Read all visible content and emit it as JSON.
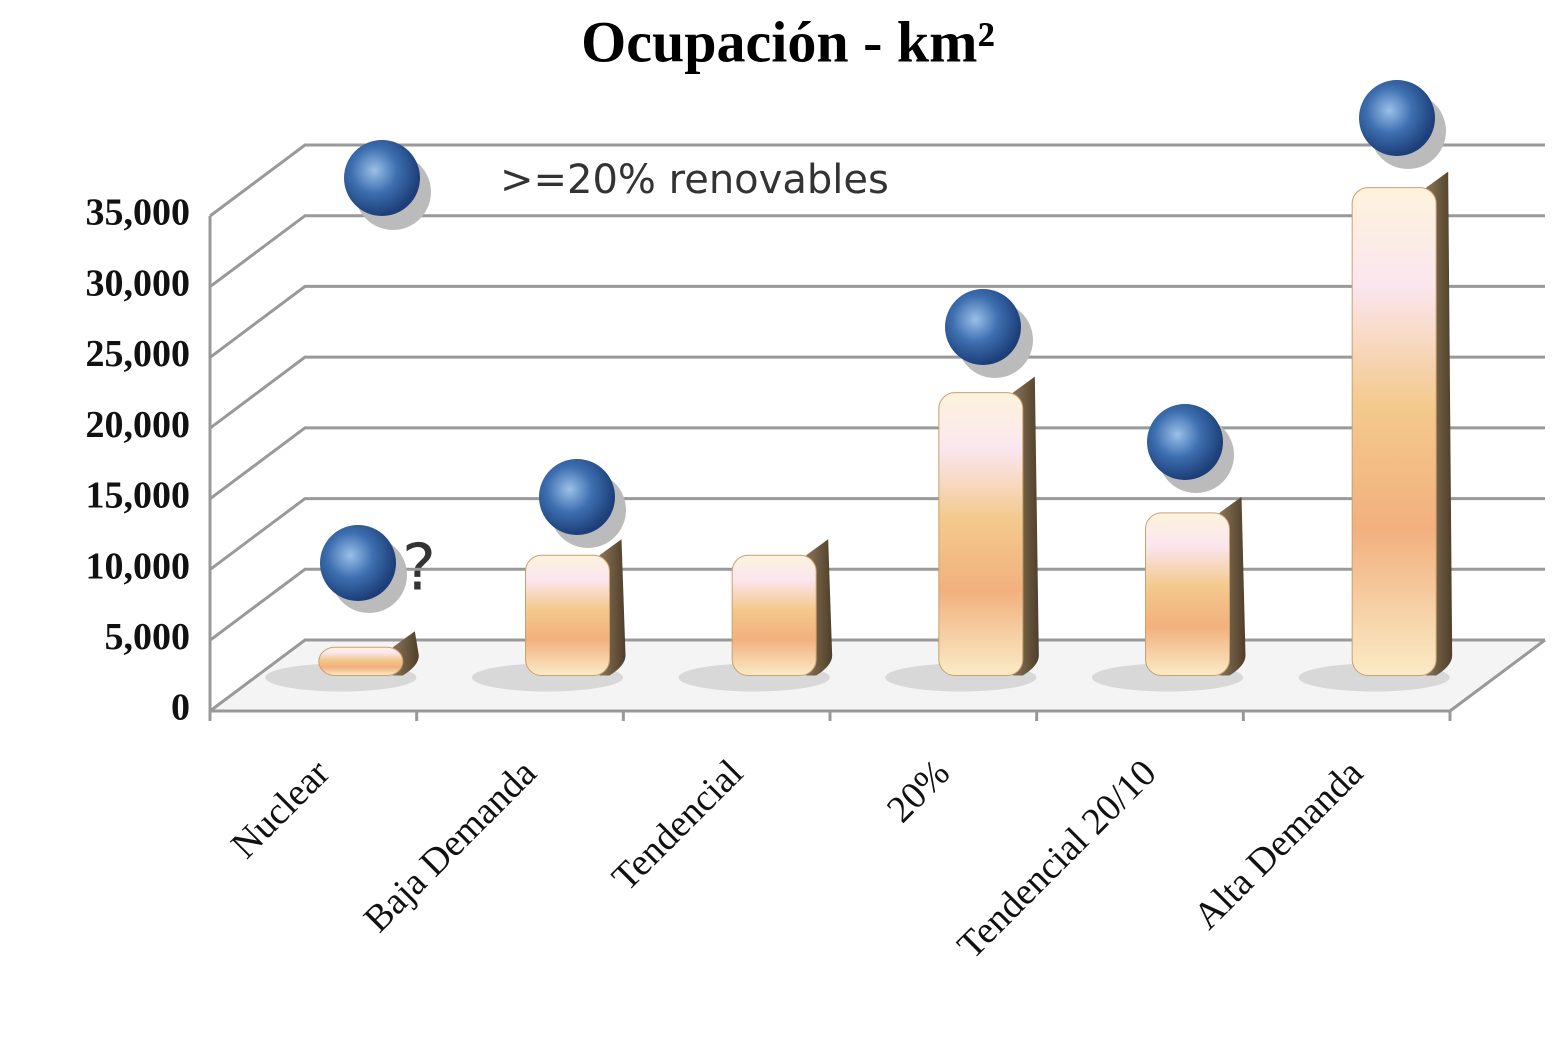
{
  "chart_data": {
    "type": "bar3d",
    "title": "Ocupación - km²",
    "annotations": [
      ">=20% renovables",
      "?"
    ],
    "categories": [
      "Nuclear",
      "Baja Demanda",
      "Tendencial",
      "20%",
      "Tendencial 20/10",
      "Alta Demanda"
    ],
    "values": [
      2000,
      8500,
      8500,
      20000,
      11500,
      34500
    ],
    "color": "#f0b878",
    "ylim": [
      0,
      35000
    ],
    "yticks": [
      0,
      {
        "value": 5000,
        "label": "5,000"
      },
      {
        "value": 10000,
        "label": "10,000"
      },
      {
        "value": 15000,
        "label": "15,000"
      },
      {
        "value": 20000,
        "label": "20,000"
      },
      {
        "value": 25000,
        "label": "25,000"
      },
      {
        "value": 30000,
        "label": "30,000"
      },
      {
        "value": 35000,
        "label": "35,000"
      }
    ],
    "grid": true
  }
}
